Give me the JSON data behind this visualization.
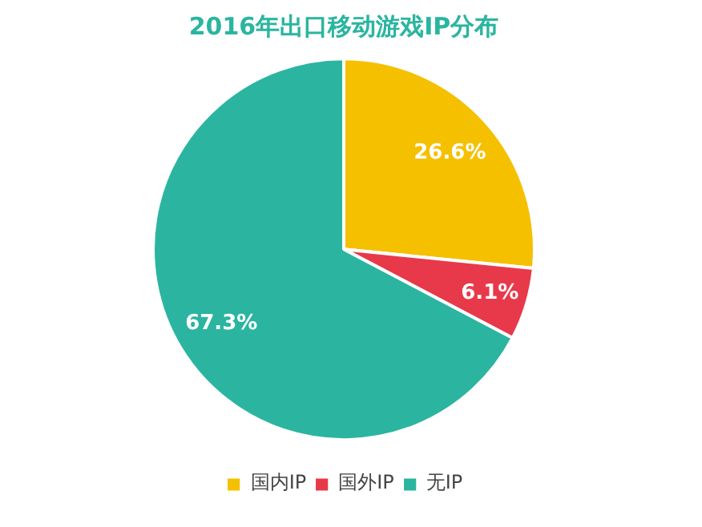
{
  "chart_data": {
    "type": "pie",
    "title": "2016年出口移动游戏IP分布",
    "categories": [
      "国内IP",
      "国外IP",
      "无IP"
    ],
    "values": [
      26.6,
      6.1,
      67.3
    ],
    "colors": [
      "#f5c000",
      "#e8394a",
      "#2bb5a0"
    ],
    "value_labels": [
      "26.6%",
      "6.1%",
      "67.3%"
    ],
    "legend": "bottom"
  }
}
